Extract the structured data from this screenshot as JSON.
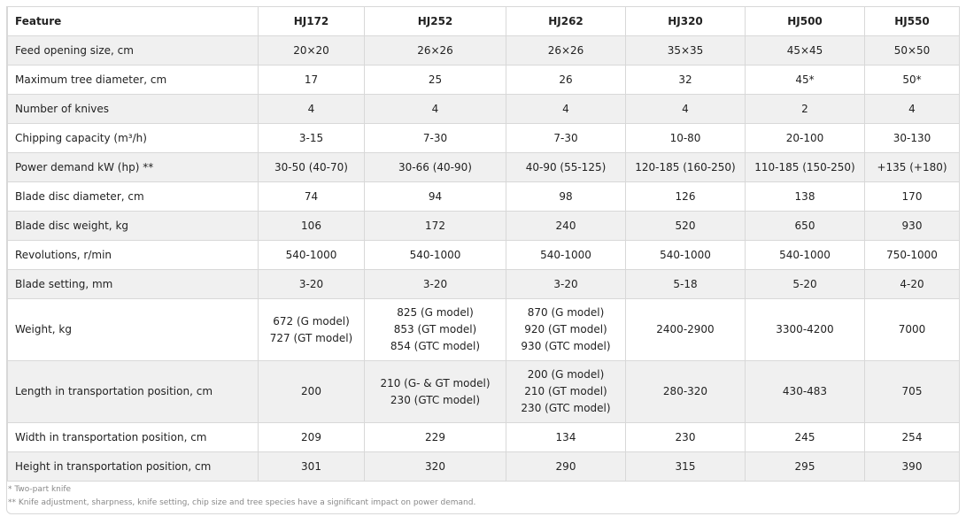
{
  "headers": [
    "Feature",
    "HJ172",
    "HJ252",
    "HJ262",
    "HJ320",
    "HJ500",
    "HJ550"
  ],
  "rows": [
    {
      "feature": "Feed opening size, cm",
      "values": [
        "20×20",
        "26×26",
        "26×26",
        "35×35",
        "45×45",
        "50×50"
      ]
    },
    {
      "feature": "Maximum tree diameter, cm",
      "values": [
        "17",
        "25",
        "26",
        "32",
        "45*",
        "50*"
      ]
    },
    {
      "feature": "Number of knives",
      "values": [
        "4",
        "4",
        "4",
        "4",
        "2",
        "4"
      ]
    },
    {
      "feature": "Chipping capacity (m³/h)",
      "values": [
        "3-15",
        "7-30",
        "7-30",
        "10-80",
        "20-100",
        "30-130"
      ]
    },
    {
      "feature": "Power demand kW (hp) **",
      "values": [
        "30-50 (40-70)",
        "30-66 (40-90)",
        "40-90 (55-125)",
        "120-185 (160-250)",
        "110-185 (150-250)",
        "+135 (+180)"
      ]
    },
    {
      "feature": "Blade disc diameter, cm",
      "values": [
        "74",
        "94",
        "98",
        "126",
        "138",
        "170"
      ]
    },
    {
      "feature": "Blade disc weight, kg",
      "values": [
        "106",
        "172",
        "240",
        "520",
        "650",
        "930"
      ]
    },
    {
      "feature": "Revolutions, r/min",
      "values": [
        "540-1000",
        "540-1000",
        "540-1000",
        "540-1000",
        "540-1000",
        "750-1000"
      ]
    },
    {
      "feature": "Blade setting, mm",
      "values": [
        "3-20",
        "3-20",
        "3-20",
        "5-18",
        "5-20",
        "4-20"
      ]
    },
    {
      "feature": "Weight, kg",
      "values": [
        "672 (G model)\n727 (GT model)",
        "825 (G model)\n853 (GT model)\n854 (GTC model)",
        "870 (G model)\n920 (GT model)\n930 (GTC model)",
        "2400-2900",
        "3300-4200",
        "7000"
      ]
    },
    {
      "feature": "Length in transportation position, cm",
      "values": [
        "200",
        "210 (G- & GT model)\n230 (GTC model)",
        "200 (G model)\n210 (GT model)\n230 (GTC model)",
        "280-320",
        "430-483",
        "705"
      ]
    },
    {
      "feature": "Width in transportation position, cm",
      "values": [
        "209",
        "229",
        "134",
        "230",
        "245",
        "254"
      ]
    },
    {
      "feature": "Height in transportation position, cm",
      "values": [
        "301",
        "320",
        "290",
        "315",
        "295",
        "390"
      ]
    }
  ],
  "footnotes": [
    "* Two-part knife",
    "** Knife adjustment, sharpness, knife setting, chip size and tree species have a significant impact on power demand."
  ]
}
